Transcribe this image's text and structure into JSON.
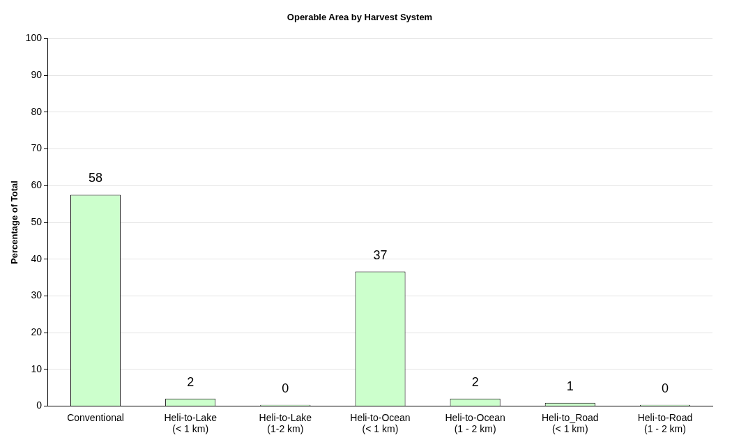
{
  "chart_data": {
    "type": "bar",
    "title": "Operable Area by Harvest System",
    "ylabel": "Percentage of Total",
    "categories": [
      "Conventional",
      "Heli-to-Lake\n(< 1 km)",
      "Heli-to-Lake\n(1-2 km)",
      "Heli-to-Ocean\n(< 1 km)",
      "Heli-to-Ocean\n(1 - 2 km)",
      "Heli-to_Road\n(< 1 km)",
      "Heli-to-Road\n(1 - 2 km)"
    ],
    "values": [
      57.5,
      2.0,
      0.3,
      36.6,
      2.0,
      0.9,
      0.3
    ],
    "value_labels": [
      "58",
      "2",
      "0",
      "37",
      "2",
      "1",
      "0"
    ],
    "color": "#ccffcc",
    "ylim": [
      0,
      100
    ],
    "yticks": [
      0,
      10,
      20,
      30,
      40,
      50,
      60,
      70,
      80,
      90,
      100
    ],
    "grid": "y",
    "legend": false
  }
}
